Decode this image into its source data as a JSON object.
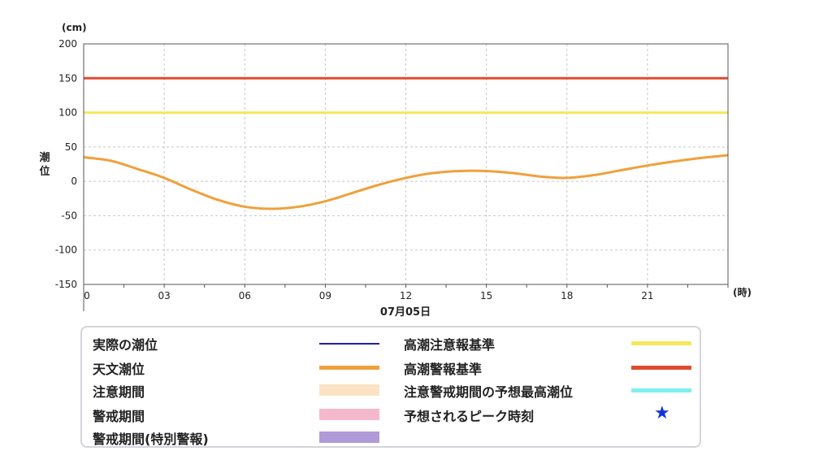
{
  "chart_data": {
    "type": "line",
    "y_unit": "(cm)",
    "ylabel": "潮位",
    "x_unit": "(時)",
    "date_label": "07月05日",
    "ylim": [
      -150,
      200
    ],
    "yticks": [
      200,
      150,
      100,
      50,
      0,
      -50,
      -100,
      -150
    ],
    "xlim": [
      0,
      24
    ],
    "xticks": [
      0,
      3,
      6,
      9,
      12,
      15,
      18,
      21
    ],
    "xtick_labels": [
      "0",
      "03",
      "06",
      "09",
      "12",
      "15",
      "18",
      "21"
    ],
    "grid": true,
    "series": [
      {
        "name": "天文潮位",
        "color": "#f0a03c",
        "x": [
          0,
          1,
          2,
          3,
          4,
          5,
          6,
          7,
          8,
          9,
          10,
          11,
          12,
          13,
          14,
          15,
          16,
          17,
          18,
          19,
          20,
          21,
          22,
          23,
          24
        ],
        "y": [
          35,
          30,
          18,
          5,
          -12,
          -27,
          -37,
          -40,
          -37,
          -29,
          -17,
          -5,
          5,
          12,
          15,
          15,
          12,
          7,
          5,
          9,
          16,
          23,
          29,
          34,
          38
        ]
      },
      {
        "name": "高潮注意報基準",
        "color": "#f5e85a",
        "x": [
          0,
          24
        ],
        "y": [
          100,
          100
        ]
      },
      {
        "name": "高潮警報基準",
        "color": "#e04b30",
        "x": [
          0,
          24
        ],
        "y": [
          150,
          150
        ]
      }
    ]
  },
  "legend": {
    "left": [
      {
        "label": "実際の潮位",
        "kind": "line",
        "color": "#2020b0"
      },
      {
        "label": "天文潮位",
        "kind": "line",
        "color": "#f0a03c"
      },
      {
        "label": "注意期間",
        "kind": "band",
        "color": "#fbe3c4"
      },
      {
        "label": "警戒期間",
        "kind": "band",
        "color": "#f5b8cc"
      },
      {
        "label": "警戒期間(特別警報)",
        "kind": "band",
        "color": "#b09ad8"
      }
    ],
    "right": [
      {
        "label": "高潮注意報基準",
        "kind": "line",
        "color": "#f5e85a"
      },
      {
        "label": "高潮警報基準",
        "kind": "line",
        "color": "#e04b30"
      },
      {
        "label": "注意警戒期間の予想最高潮位",
        "kind": "line",
        "color": "#7ef0f0"
      },
      {
        "label": "予想されるピーク時刻",
        "kind": "star",
        "color": "#1030e0",
        "symbol": "★"
      }
    ]
  }
}
